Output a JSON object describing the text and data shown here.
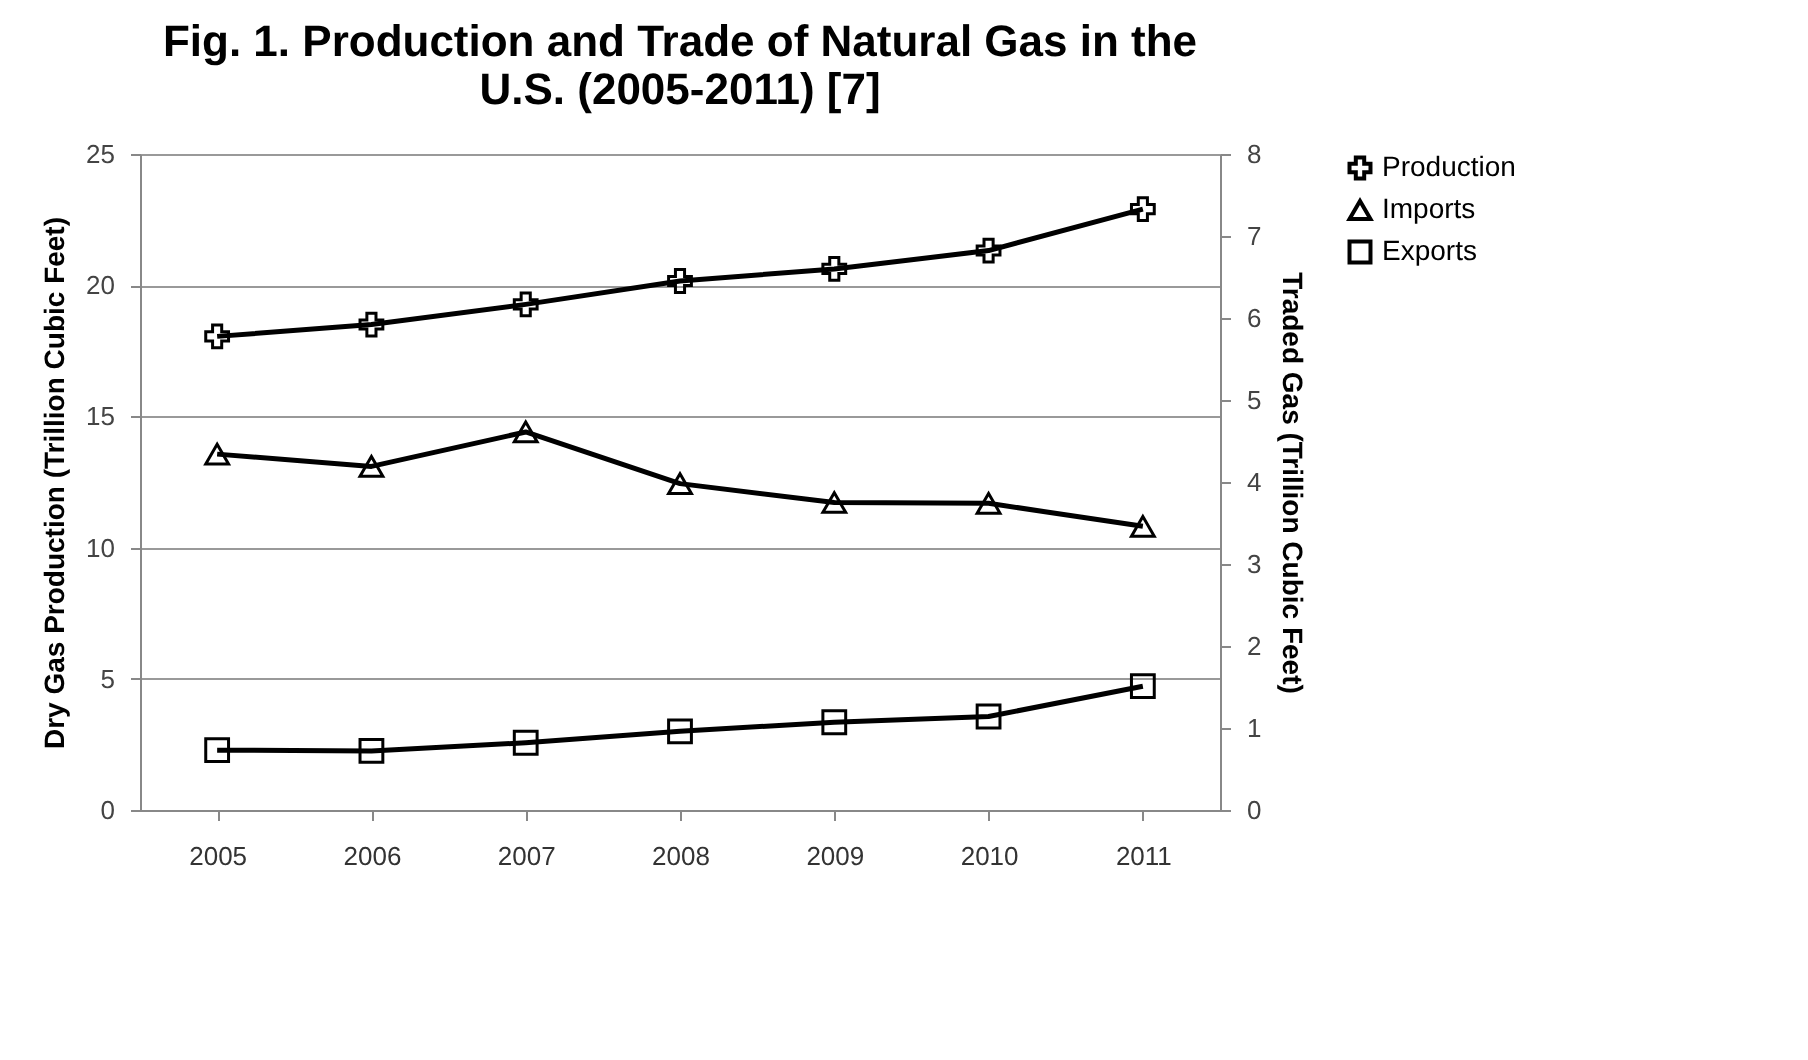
{
  "chart_data": {
    "type": "line",
    "title": [
      "Fig. 1. Production and Trade of Natural Gas in the",
      "U.S. (2005-2011) [7]"
    ],
    "ylabel": "Dry Gas Production (Trillion Cubic Feet)",
    "y2label": "Traded Gas (Trillion Cubic Feet)",
    "categories": [
      "2005",
      "2006",
      "2007",
      "2008",
      "2009",
      "2010",
      "2011"
    ],
    "series": [
      {
        "name": "Production",
        "color": "#000000",
        "marker": "cross",
        "values": [
          18.05,
          18.5,
          19.27,
          20.16,
          20.62,
          21.32,
          22.9
        ]
      },
      {
        "name": "Imports",
        "color": "#000000",
        "marker": "triangle",
        "axis": "y2",
        "values": [
          4.34,
          4.19,
          4.61,
          3.98,
          3.75,
          3.74,
          3.46
        ]
      },
      {
        "name": "Exports",
        "color": "#000000",
        "marker": "square",
        "axis": "y2",
        "values": [
          0.73,
          0.72,
          0.82,
          0.96,
          1.07,
          1.14,
          1.51
        ]
      }
    ],
    "ylim": [
      0,
      25
    ],
    "yticks": [
      0,
      5,
      10,
      15,
      20,
      25
    ],
    "y2lim": [
      0,
      8
    ],
    "y2ticks": [
      0,
      1,
      2,
      3,
      4,
      5,
      6,
      7,
      8
    ],
    "grid": "y",
    "legend": "right",
    "line_style": "solid"
  }
}
